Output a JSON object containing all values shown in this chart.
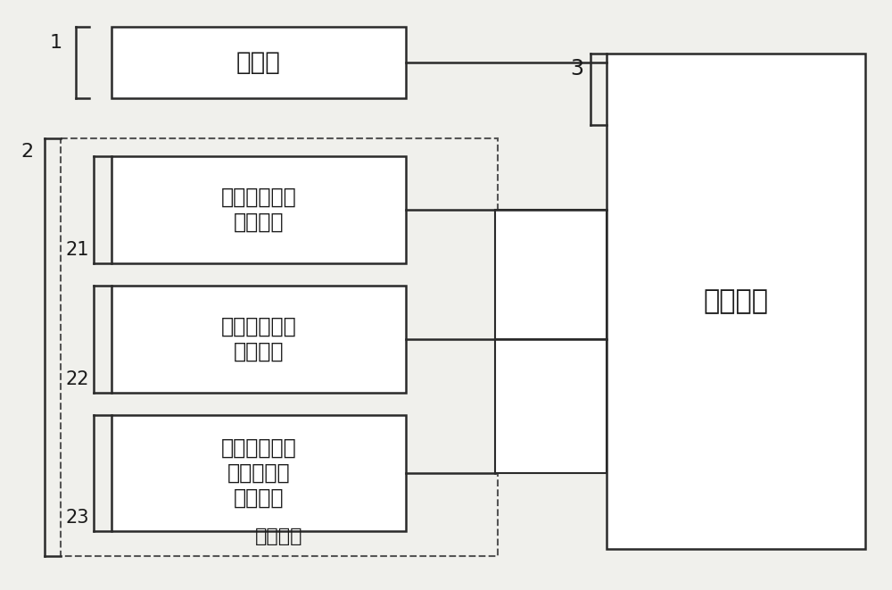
{
  "bg_color": "#f0f0ec",
  "box1_text": "摄像头",
  "box1_label": "1",
  "box2_label": "2",
  "box21_text": "移动通信信号\n收发模块",
  "box21_label": "21",
  "box22_text": "差分定位信号\n收发模块",
  "box22_label": "22",
  "box23_text": "车对外界的信\n息交换信号\n收发模块",
  "box23_label": "23",
  "box2_bottom_text": "通信模块",
  "box3_text": "控制模块",
  "box3_label": "3",
  "line_color": "#2a2a2a",
  "box_edge_color": "#2a2a2a",
  "dashed_color": "#555555",
  "text_color": "#1a1a1a",
  "font_size_main": 17,
  "font_size_label": 15,
  "font_size_bottom": 16
}
